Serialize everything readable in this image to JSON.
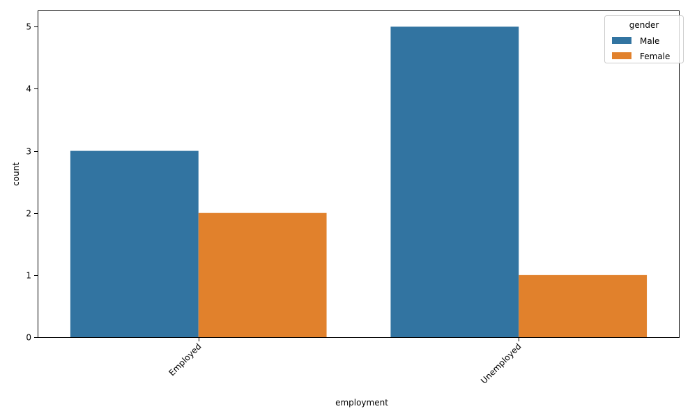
{
  "chart_data": {
    "type": "bar",
    "categories": [
      "Employed",
      "Unemployed"
    ],
    "series": [
      {
        "name": "Male",
        "values": [
          3,
          5
        ],
        "color": "#3274a1"
      },
      {
        "name": "Female",
        "values": [
          2,
          1
        ],
        "color": "#e1812c"
      }
    ],
    "xlabel": "employment",
    "ylabel": "count",
    "ylim": [
      0,
      5.25
    ],
    "yticks": [
      0,
      1,
      2,
      3,
      4,
      5
    ],
    "legend": {
      "title": "gender",
      "placement": "top-right"
    },
    "grid": false
  }
}
